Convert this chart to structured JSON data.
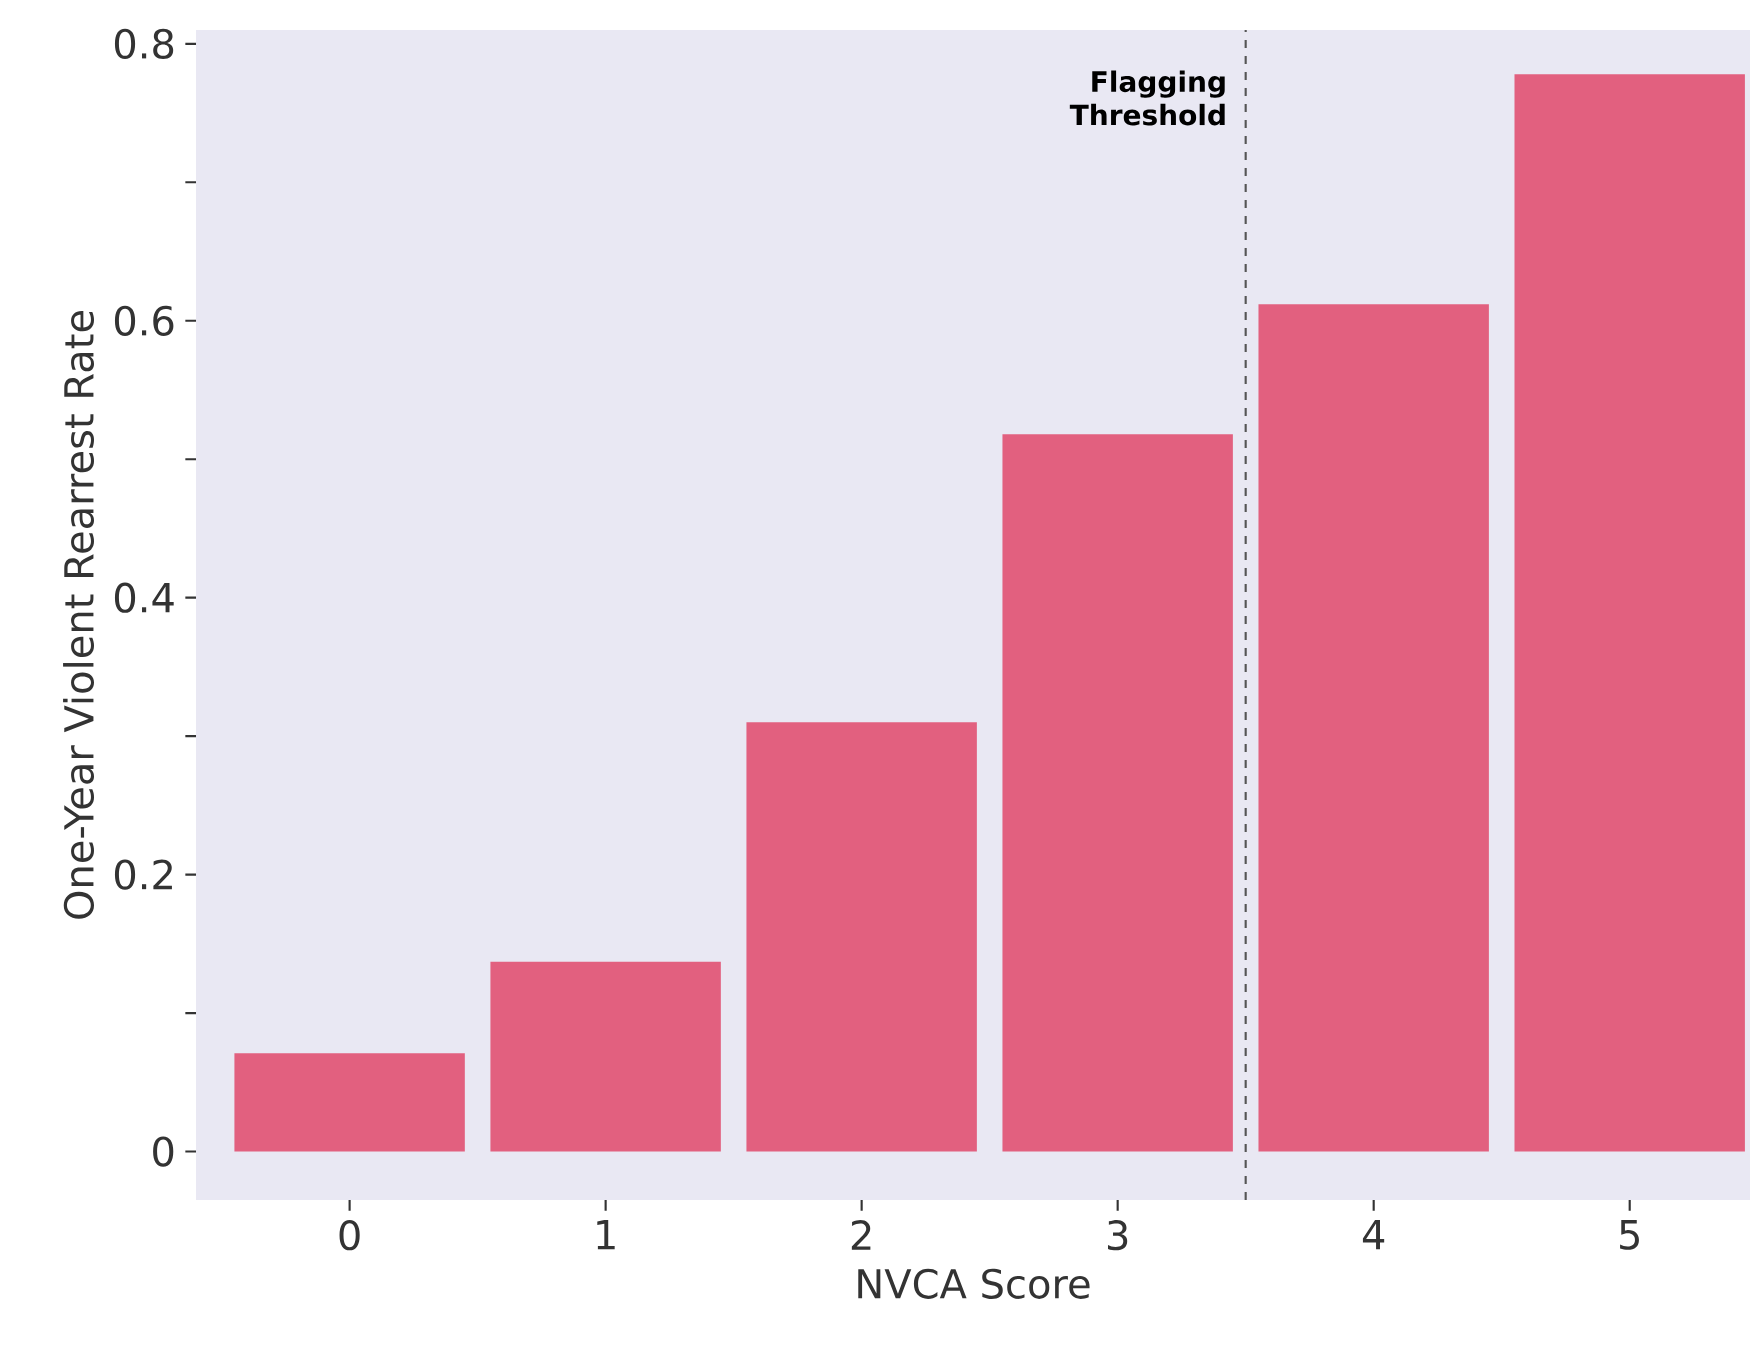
{
  "chart_data": {
    "type": "bar",
    "xlabel": "NVCA Score",
    "ylabel": "One-Year Violent Rearrest Rate",
    "categories": [
      "0",
      "1",
      "2",
      "3",
      "4",
      "5"
    ],
    "values": [
      0.071,
      0.137,
      0.31,
      0.518,
      0.612,
      0.778
    ],
    "color": "#e2607f",
    "ylim": [
      -0.035,
      0.81
    ],
    "yticks": [
      0,
      {
        "value": 0.1,
        "label": null
      },
      0.2,
      {
        "value": 0.3,
        "label": null
      },
      0.4,
      {
        "value": 0.5,
        "label": null
      },
      0.6,
      {
        "value": 0.7,
        "label": null
      },
      0.8
    ],
    "annotations": [
      "Flagging Threshold"
    ],
    "grid": false
  }
}
